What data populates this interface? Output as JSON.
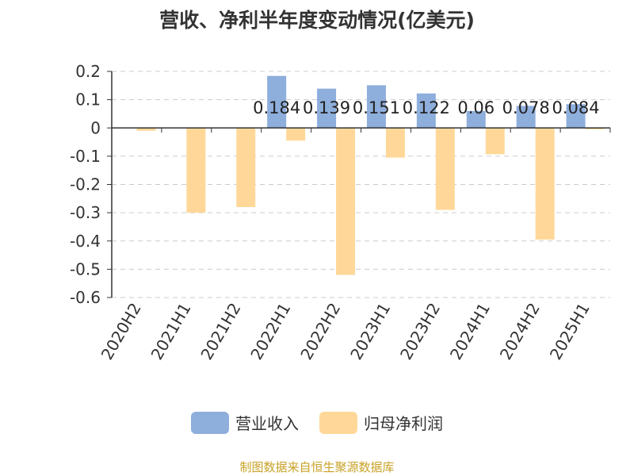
{
  "chart_data": {
    "type": "bar",
    "title": "营收、净利半年度变动情况(亿美元)",
    "categories": [
      "2020H2",
      "2021H1",
      "2021H2",
      "2022H1",
      "2022H2",
      "2023H1",
      "2023H2",
      "2024H1",
      "2024H2",
      "2025H1"
    ],
    "series": [
      {
        "name": "营业收入",
        "color": "#8eaedc",
        "values": [
          null,
          null,
          null,
          0.184,
          0.139,
          0.151,
          0.122,
          0.06,
          0.078,
          0.084
        ],
        "labels": [
          "",
          "",
          "",
          "0.184",
          "0.139",
          "0.151",
          "0.122",
          "0.06",
          "0.078",
          "0.084"
        ]
      },
      {
        "name": "归母净利润",
        "color": "#ffd899",
        "values": [
          -0.01,
          -0.3,
          -0.28,
          -0.045,
          -0.52,
          -0.105,
          -0.29,
          -0.093,
          -0.395,
          -0.005
        ]
      }
    ],
    "ylim": [
      -0.6,
      0.2
    ],
    "yticks": [
      "0.2",
      "0.1",
      "0",
      "-0.1",
      "-0.2",
      "-0.3",
      "-0.4",
      "-0.5",
      "-0.6"
    ],
    "ytick_values": [
      0.2,
      0.1,
      0,
      -0.1,
      -0.2,
      -0.3,
      -0.4,
      -0.5,
      -0.6
    ],
    "grid": true,
    "legend_position": "bottom"
  },
  "source": "制图数据来自恒生聚源数据库"
}
